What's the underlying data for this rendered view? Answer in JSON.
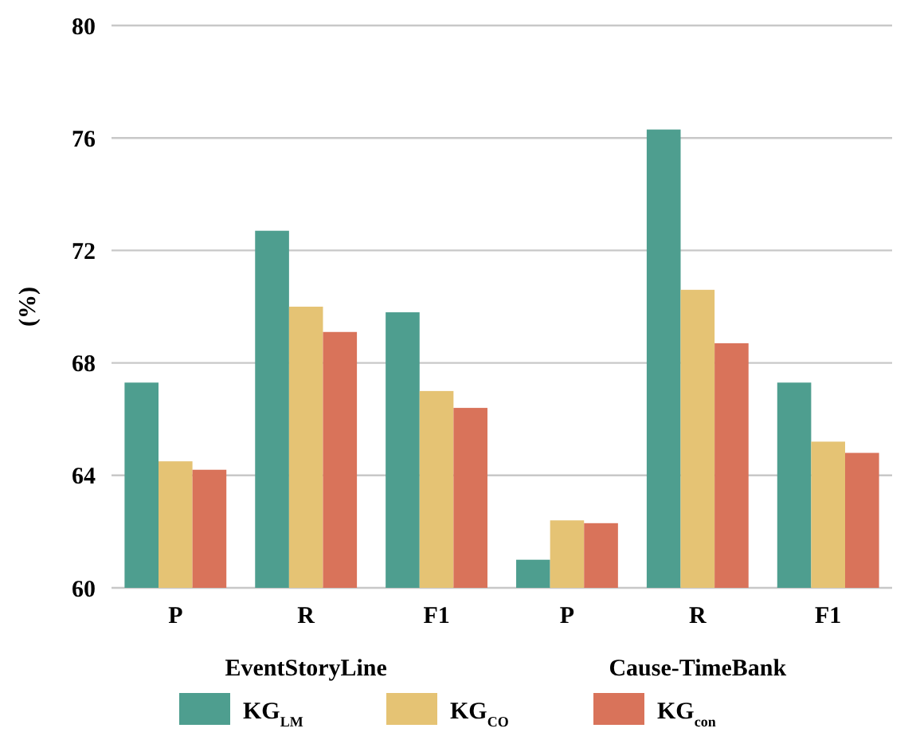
{
  "chart_data": {
    "type": "bar",
    "ylabel": "(%)",
    "categories": [
      "P",
      "R",
      "F1",
      "P",
      "R",
      "F1"
    ],
    "series": [
      {
        "name": "KG$_{LM}$",
        "color": "#4e9e8f",
        "values": [
          67.3,
          72.7,
          69.8,
          61.0,
          76.3,
          67.3
        ]
      },
      {
        "name": "KG$_{CO}$",
        "color": "#e5c374",
        "values": [
          64.5,
          70.0,
          67.0,
          62.4,
          70.6,
          65.2
        ]
      },
      {
        "name": "KG$_{con}$",
        "color": "#d9735a",
        "values": [
          64.2,
          69.1,
          66.4,
          62.3,
          68.7,
          64.8
        ]
      }
    ],
    "annotations": [
      "EventStoryLine",
      "Cause-TimeBank"
    ],
    "ylim": [
      60,
      80
    ],
    "yticks": [
      60,
      64,
      68,
      72,
      76,
      80
    ],
    "grid": "y",
    "legend": "bottom"
  }
}
